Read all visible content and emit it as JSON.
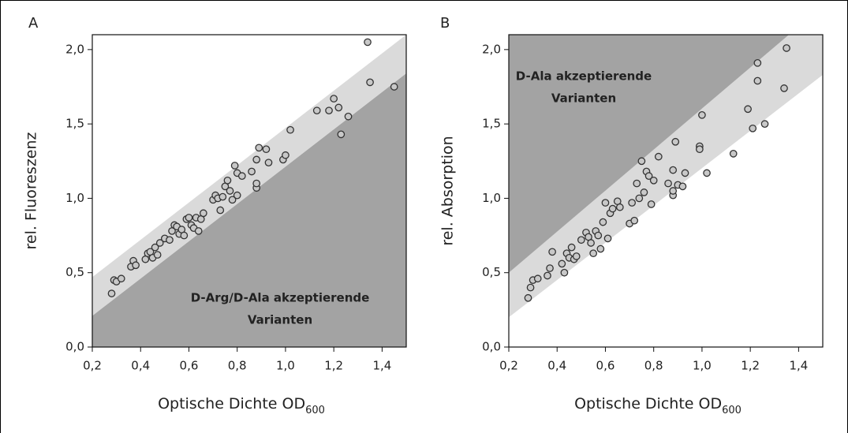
{
  "chart_data": [
    {
      "type": "scatter",
      "title": "A",
      "y_label": "rel. Fluoreszenz",
      "x_label": "Optische Dichte OD",
      "x_label_subscript": "600",
      "annotations": [
        "D-Arg/D-Ala akzeptierende",
        "Varianten"
      ],
      "xlim": [
        0.2,
        1.5
      ],
      "ylim": [
        0,
        2.1
      ],
      "xticks": [
        {
          "value": 0.2,
          "label": "0,2"
        },
        {
          "value": 0.4,
          "label": "0,4"
        },
        {
          "value": 0.6,
          "label": "0,6"
        },
        {
          "value": 0.8,
          "label": "0,8"
        },
        {
          "value": 1.0,
          "label": "1,0"
        },
        {
          "value": 1.2,
          "label": "1,2"
        },
        {
          "value": 1.4,
          "label": "1,4"
        }
      ],
      "yticks": [
        {
          "value": 0,
          "label": "0,0"
        },
        {
          "value": 0.5,
          "label": "0,5"
        },
        {
          "value": 1.0,
          "label": "1,0"
        },
        {
          "value": 1.5,
          "label": "1,5"
        },
        {
          "value": 2.0,
          "label": "2,0"
        }
      ],
      "marker_color": "#c8c8c8",
      "shaded_regions": [
        {
          "color": "#a3a3a3",
          "x": [
            0.2,
            1.5,
            1.5,
            0.2
          ],
          "y": [
            0,
            0,
            1.84,
            0.21
          ]
        },
        {
          "color": "#dadada",
          "x": [
            0.2,
            1.5,
            1.5,
            0.2
          ],
          "y": [
            0.21,
            1.84,
            2.1,
            0.47
          ]
        }
      ],
      "x": [
        0.28,
        0.29,
        0.3,
        0.32,
        0.36,
        0.37,
        0.38,
        0.42,
        0.43,
        0.44,
        0.45,
        0.46,
        0.47,
        0.48,
        0.5,
        0.52,
        0.53,
        0.54,
        0.55,
        0.56,
        0.57,
        0.58,
        0.59,
        0.6,
        0.61,
        0.62,
        0.63,
        0.64,
        0.65,
        0.66,
        0.7,
        0.71,
        0.72,
        0.73,
        0.74,
        0.75,
        0.76,
        0.77,
        0.78,
        0.79,
        0.8,
        0.8,
        0.82,
        0.86,
        0.88,
        0.88,
        0.88,
        0.89,
        0.92,
        0.93,
        0.99,
        1.0,
        1.02,
        1.13,
        1.18,
        1.2,
        1.22,
        1.23,
        1.26,
        1.34,
        1.35,
        1.45
      ],
      "values": [
        0.36,
        0.45,
        0.44,
        0.46,
        0.54,
        0.58,
        0.55,
        0.59,
        0.63,
        0.64,
        0.6,
        0.67,
        0.62,
        0.7,
        0.73,
        0.72,
        0.78,
        0.82,
        0.81,
        0.76,
        0.79,
        0.75,
        0.86,
        0.87,
        0.82,
        0.8,
        0.87,
        0.78,
        0.86,
        0.9,
        0.99,
        1.02,
        1.0,
        0.92,
        1.01,
        1.08,
        1.12,
        1.05,
        0.99,
        1.22,
        1.17,
        1.02,
        1.15,
        1.18,
        1.07,
        1.1,
        1.26,
        1.34,
        1.33,
        1.24,
        1.26,
        1.29,
        1.46,
        1.59,
        1.59,
        1.67,
        1.61,
        1.43,
        1.55,
        2.05,
        1.78,
        1.75
      ]
    },
    {
      "type": "scatter",
      "title": "B",
      "y_label": "rel. Absorption",
      "x_label": "Optische Dichte OD",
      "x_label_subscript": "600",
      "annotations": [
        "D-Ala akzeptierende",
        "Varianten"
      ],
      "xlim": [
        0.2,
        1.5
      ],
      "ylim": [
        0,
        2.1
      ],
      "xticks": [
        {
          "value": 0.2,
          "label": "0,2"
        },
        {
          "value": 0.4,
          "label": "0,4"
        },
        {
          "value": 0.6,
          "label": "0,6"
        },
        {
          "value": 0.8,
          "label": "0,8"
        },
        {
          "value": 1.0,
          "label": "1,0"
        },
        {
          "value": 1.2,
          "label": "1,2"
        },
        {
          "value": 1.4,
          "label": "1,4"
        }
      ],
      "yticks": [
        {
          "value": 0,
          "label": "0,0"
        },
        {
          "value": 0.5,
          "label": "0,5"
        },
        {
          "value": 1.0,
          "label": "1,0"
        },
        {
          "value": 1.5,
          "label": "1,5"
        },
        {
          "value": 2.0,
          "label": "2,0"
        }
      ],
      "marker_color": "#c8c8c8",
      "shaded_regions": [
        {
          "color": "#dadada",
          "x": [
            0.2,
            1.5,
            1.5,
            1.36,
            0.2
          ],
          "y": [
            0.2,
            1.83,
            2.1,
            2.1,
            0.5
          ]
        },
        {
          "color": "#a3a3a3",
          "x": [
            0.2,
            1.36,
            0.2
          ],
          "y": [
            0.5,
            2.1,
            2.1
          ]
        }
      ],
      "x": [
        0.28,
        0.29,
        0.3,
        0.32,
        0.36,
        0.37,
        0.38,
        0.42,
        0.43,
        0.44,
        0.45,
        0.46,
        0.47,
        0.48,
        0.5,
        0.52,
        0.53,
        0.54,
        0.55,
        0.56,
        0.57,
        0.58,
        0.59,
        0.6,
        0.61,
        0.62,
        0.63,
        0.65,
        0.66,
        0.7,
        0.71,
        0.72,
        0.73,
        0.74,
        0.75,
        0.76,
        0.77,
        0.78,
        0.79,
        0.8,
        0.82,
        0.86,
        0.88,
        0.88,
        0.88,
        0.89,
        0.9,
        0.92,
        0.93,
        0.99,
        0.99,
        1.0,
        1.02,
        1.13,
        1.19,
        1.21,
        1.23,
        1.23,
        1.26,
        1.34,
        1.35
      ],
      "values": [
        0.33,
        0.4,
        0.45,
        0.46,
        0.48,
        0.53,
        0.64,
        0.56,
        0.5,
        0.63,
        0.6,
        0.67,
        0.59,
        0.61,
        0.72,
        0.77,
        0.74,
        0.7,
        0.63,
        0.78,
        0.75,
        0.66,
        0.84,
        0.97,
        0.73,
        0.9,
        0.93,
        0.98,
        0.94,
        0.83,
        0.97,
        0.85,
        1.1,
        1.0,
        1.25,
        1.04,
        1.18,
        1.15,
        0.96,
        1.12,
        1.28,
        1.1,
        1.02,
        1.05,
        1.19,
        1.38,
        1.09,
        1.08,
        1.17,
        1.35,
        1.33,
        1.56,
        1.17,
        1.3,
        1.6,
        1.47,
        1.79,
        1.91,
        1.5,
        1.74,
        2.01
      ]
    }
  ]
}
